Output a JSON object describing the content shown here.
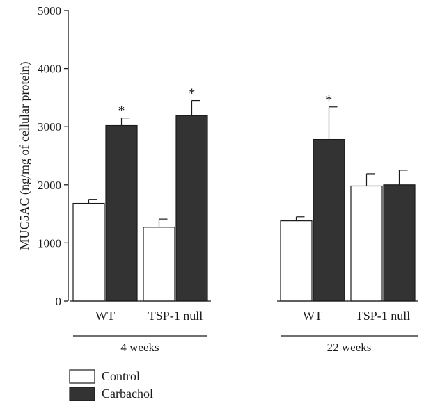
{
  "chart_data": {
    "type": "bar",
    "title": "",
    "ylabel": "MUC5AC (ng/mg of cellular protein)",
    "ylim": [
      0,
      5000
    ],
    "yticks": [
      0,
      1000,
      2000,
      3000,
      4000,
      5000
    ],
    "series": [
      {
        "name": "Control",
        "color": "#ffffff"
      },
      {
        "name": "Carbachol",
        "color": "#333333"
      }
    ],
    "groups": [
      {
        "label": "4 weeks",
        "categories": [
          {
            "label": "WT",
            "bars": [
              {
                "series": "Control",
                "value": 1680,
                "error": 70,
                "significant": false
              },
              {
                "series": "Carbachol",
                "value": 3020,
                "error": 130,
                "significant": true
              }
            ]
          },
          {
            "label": "TSP-1 null",
            "bars": [
              {
                "series": "Control",
                "value": 1270,
                "error": 140,
                "significant": false
              },
              {
                "series": "Carbachol",
                "value": 3190,
                "error": 260,
                "significant": true
              }
            ]
          }
        ]
      },
      {
        "label": "22 weeks",
        "categories": [
          {
            "label": "WT",
            "bars": [
              {
                "series": "Control",
                "value": 1380,
                "error": 70,
                "significant": false
              },
              {
                "series": "Carbachol",
                "value": 2780,
                "error": 560,
                "significant": true
              }
            ]
          },
          {
            "label": "TSP-1 null",
            "bars": [
              {
                "series": "Control",
                "value": 1980,
                "error": 210,
                "significant": false
              },
              {
                "series": "Carbachol",
                "value": 2000,
                "error": 250,
                "significant": false
              }
            ]
          }
        ]
      }
    ],
    "significance_marker": "*",
    "legend": {
      "placement": "bottom-left",
      "items": [
        {
          "label": "Control",
          "color": "#ffffff"
        },
        {
          "label": "Carbachol",
          "color": "#333333"
        }
      ]
    }
  }
}
